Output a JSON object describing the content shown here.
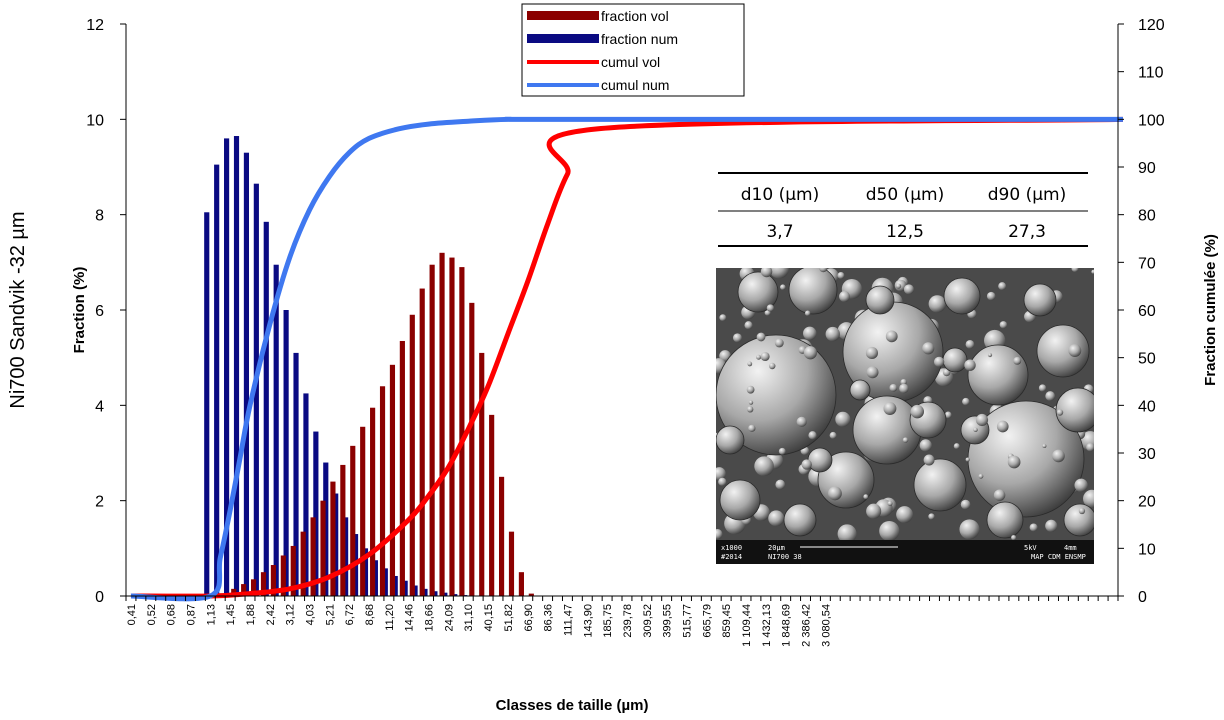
{
  "side_title": "Ni700 Sandvik -32 µm",
  "colors": {
    "fraction_vol": "#8b0000",
    "fraction_num": "#0a0a82",
    "cumul_vol": "#ff0000",
    "cumul_num": "#3f78f0"
  },
  "table": {
    "headers": [
      "d10 (µm)",
      "d50 (µm)",
      "d90 (µm)"
    ],
    "values": [
      "3,7",
      "12,5",
      "27,3"
    ]
  },
  "micrograph": {
    "caption_line1": [
      "x1000",
      "20µm",
      "5kV",
      "4mm"
    ],
    "caption_line2": [
      "#2014",
      "NI700 38",
      "MAP CDM ENSMP"
    ]
  },
  "chart_data": {
    "type": "bar",
    "xlabel": "Classes de taille (µm)",
    "ylabel": "Fraction (%)",
    "y2label": "Fraction cumulée (%)",
    "ylim": [
      0,
      12
    ],
    "y2lim": [
      0,
      120
    ],
    "yticks": [
      "0",
      "2",
      "4",
      "6",
      "8",
      "10",
      "12"
    ],
    "y2ticks": [
      "0",
      "10",
      "20",
      "30",
      "40",
      "50",
      "60",
      "70",
      "80",
      "90",
      "100",
      "110",
      "120"
    ],
    "n_classes": 100,
    "x_tick_labels": [
      "0,41",
      "0,52",
      "0,68",
      "0,87",
      "1,13",
      "1,45",
      "1,88",
      "2,42",
      "3,12",
      "4,03",
      "5,21",
      "6,72",
      "8,68",
      "11,20",
      "14,46",
      "18,66",
      "24,09",
      "31,10",
      "40,15",
      "51,82",
      "66,90",
      "86,36",
      "111,47",
      "143,90",
      "185,75",
      "239,78",
      "309,52",
      "399,55",
      "515,77",
      "665,79",
      "859,45",
      "1 109,44",
      "1 432,13",
      "1 848,69",
      "2 386,42",
      "3 080,54"
    ],
    "legend_position": "top-center",
    "series": [
      {
        "name": "fraction vol",
        "type": "bar",
        "axis": "y",
        "values": [
          0,
          0,
          0,
          0,
          0,
          0,
          0,
          0,
          0,
          0.05,
          0.15,
          0.25,
          0.35,
          0.5,
          0.65,
          0.85,
          1.05,
          1.35,
          1.65,
          2.0,
          2.4,
          2.75,
          3.15,
          3.55,
          3.95,
          4.4,
          4.85,
          5.35,
          5.9,
          6.45,
          6.95,
          7.2,
          7.1,
          6.9,
          6.15,
          5.1,
          3.8,
          2.5,
          1.35,
          0.5,
          0.05,
          0
        ]
      },
      {
        "name": "fraction num",
        "type": "bar",
        "axis": "y",
        "values": [
          0,
          0,
          0,
          0,
          0,
          0,
          0,
          0,
          8.05,
          9.05,
          9.6,
          9.65,
          9.3,
          8.65,
          7.85,
          6.95,
          6.0,
          5.1,
          4.25,
          3.45,
          2.8,
          2.15,
          1.65,
          1.3,
          1.0,
          0.75,
          0.58,
          0.42,
          0.32,
          0.22,
          0.15,
          0.1,
          0.07,
          0.04,
          0.02,
          0,
          0,
          0,
          0,
          0,
          0,
          0
        ]
      },
      {
        "name": "cumul vol",
        "type": "line",
        "axis": "y2",
        "x": [
          0,
          8,
          12,
          16,
          20,
          24,
          28,
          30,
          32,
          34,
          36,
          38,
          40,
          42,
          44,
          47,
          100
        ],
        "values": [
          0,
          0,
          0.5,
          1.5,
          4,
          8.7,
          16,
          21,
          27,
          35,
          44,
          55,
          66,
          78,
          88.5,
          98,
          100
        ]
      },
      {
        "name": "cumul num",
        "type": "line",
        "axis": "y2",
        "x": [
          0,
          8,
          9,
          10,
          11,
          12,
          14,
          16,
          18,
          20,
          22,
          24,
          27,
          30,
          34,
          38,
          44,
          100
        ],
        "values": [
          0,
          0,
          8,
          18,
          29,
          40,
          57,
          71,
          81,
          88,
          93,
          96,
          98,
          99,
          99.6,
          100,
          100,
          100
        ]
      }
    ]
  }
}
